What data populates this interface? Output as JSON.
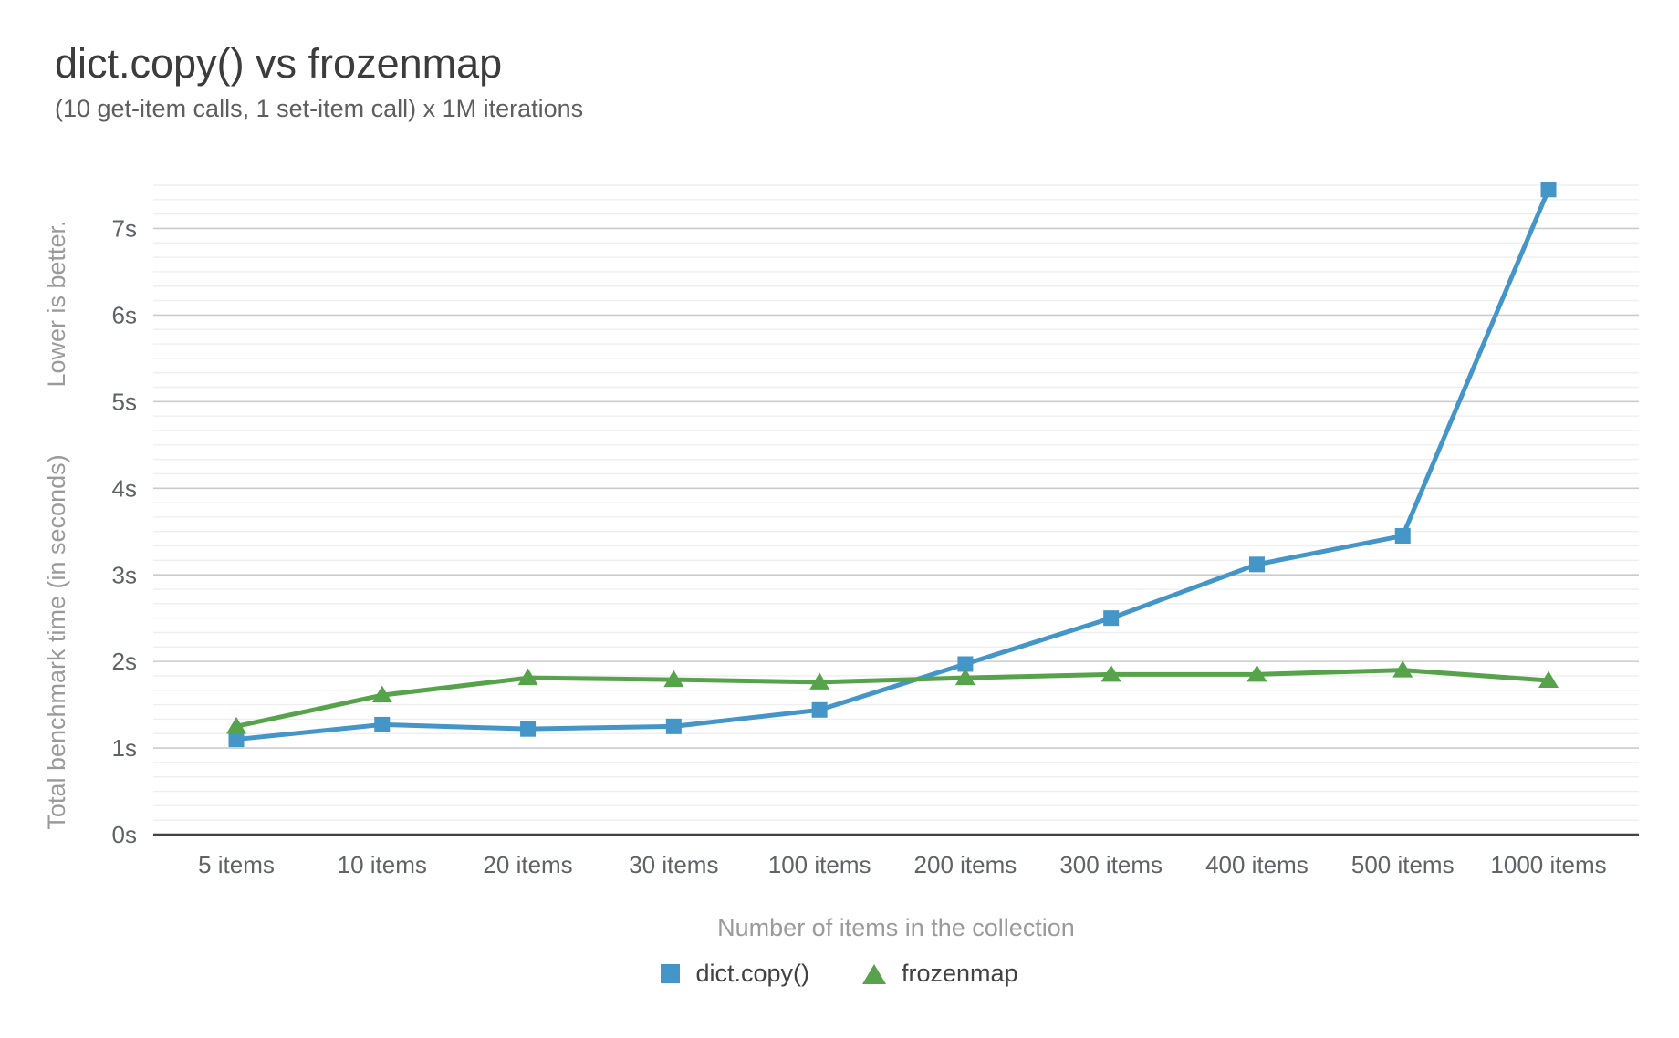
{
  "chart_data": {
    "type": "line",
    "title": "dict.copy() vs frozenmap",
    "subtitle": "(10 get-item calls, 1 set-item call) x 1M iterations",
    "xlabel": "Number of items in the collection",
    "ylabel": "Total benchmark time (in seconds)",
    "ylabel_note": "Lower is better.",
    "categories": [
      "5 items",
      "10 items",
      "20 items",
      "30 items",
      "100 items",
      "200 items",
      "300 items",
      "400 items",
      "500 items",
      "1000 items"
    ],
    "series": [
      {
        "name": "dict.copy()",
        "marker": "square",
        "color": "#4495c8",
        "values": [
          1.1,
          1.27,
          1.22,
          1.25,
          1.44,
          1.97,
          2.5,
          3.12,
          3.45,
          7.45
        ]
      },
      {
        "name": "frozenmap",
        "marker": "triangle",
        "color": "#57a34c",
        "values": [
          1.25,
          1.61,
          1.81,
          1.79,
          1.76,
          1.81,
          1.85,
          1.85,
          1.9,
          1.78
        ]
      }
    ],
    "y_ticks": [
      "0s",
      "1s",
      "2s",
      "3s",
      "4s",
      "5s",
      "6s",
      "7s"
    ],
    "ylim": [
      0,
      7.5
    ],
    "y_major_step": 1,
    "y_minor_divisions": 6,
    "grid": true,
    "legend_position": "bottom",
    "colors": {
      "title": "#3c3c3c",
      "subtitle": "#5e5e5e",
      "tick_labels": "#5f6368",
      "axis_titles": "#9a9a9a"
    }
  }
}
